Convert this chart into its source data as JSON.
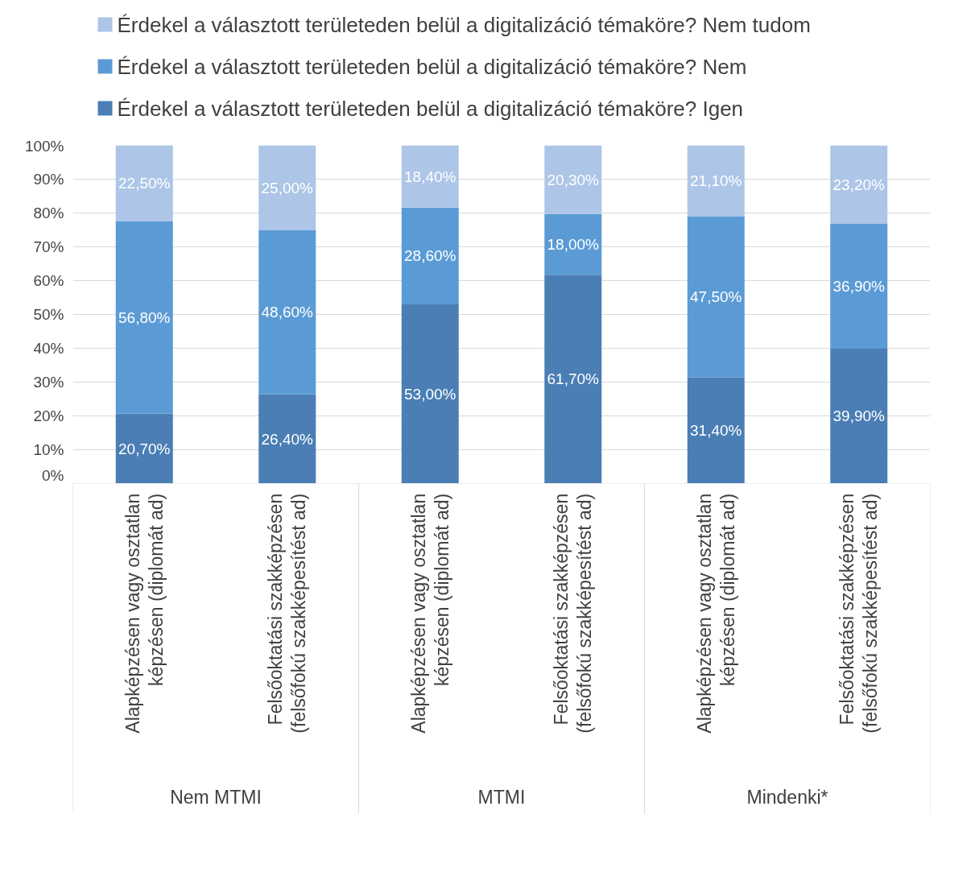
{
  "chart_data": {
    "type": "bar",
    "stacked": true,
    "categories": [
      "Alapképzésen vagy osztatlan képzésen (diplomát ad)",
      "Felsőoktatási szakképzésen (felsőfokú szakképesítést ad)",
      "Alapképzésen vagy osztatlan képzésen (diplomát ad)",
      "Felsőoktatási szakképzésen (felsőfokú szakképesítést ad)",
      "Alapképzésen vagy osztatlan képzésen (diplomát ad)",
      "Felsőoktatási szakképzésen (felsőfokú szakképesítést ad)"
    ],
    "annotations": [
      "Nem MTMI",
      "MTMI",
      "Mindenki*"
    ],
    "series": [
      {
        "name": "Érdekel a választott területeden belül a digitalizáció témaköre? Igen",
        "color": "#4a7eb4",
        "values": [
          20.7,
          26.4,
          53.0,
          61.7,
          31.4,
          39.9
        ],
        "value_labels": [
          "20,70%",
          "26,40%",
          "53,00%",
          "61,70%",
          "31,40%",
          "39,90%"
        ]
      },
      {
        "name": "Érdekel a választott területeden belül a digitalizáció témaköre? Nem",
        "color": "#5b9bd5",
        "values": [
          56.8,
          48.6,
          28.6,
          18.0,
          47.5,
          36.9
        ],
        "value_labels": [
          "56,80%",
          "48,60%",
          "28,60%",
          "18,00%",
          "47,50%",
          "36,90%"
        ]
      },
      {
        "name": "Érdekel a választott területeden belül a digitalizáció témaköre? Nem tudom",
        "color": "#adc5e7",
        "values": [
          22.5,
          25.0,
          18.4,
          20.3,
          21.1,
          23.2
        ],
        "value_labels": [
          "22,50%",
          "25,00%",
          "18,40%",
          "20,30%",
          "21,10%",
          "23,20%"
        ]
      }
    ],
    "ylim": [
      0,
      100
    ],
    "yticks": [
      {
        "value": 0,
        "label": "0%"
      },
      {
        "value": 10,
        "label": "10%"
      },
      {
        "value": 20,
        "label": "20%"
      },
      {
        "value": 30,
        "label": "30%"
      },
      {
        "value": 40,
        "label": "40%"
      },
      {
        "value": 50,
        "label": "50%"
      },
      {
        "value": 60,
        "label": "60%"
      },
      {
        "value": 70,
        "label": "70%"
      },
      {
        "value": 80,
        "label": "80%"
      },
      {
        "value": 90,
        "label": "90%"
      },
      {
        "value": 100,
        "label": "100%"
      }
    ],
    "grid": "y",
    "legend": "top"
  }
}
